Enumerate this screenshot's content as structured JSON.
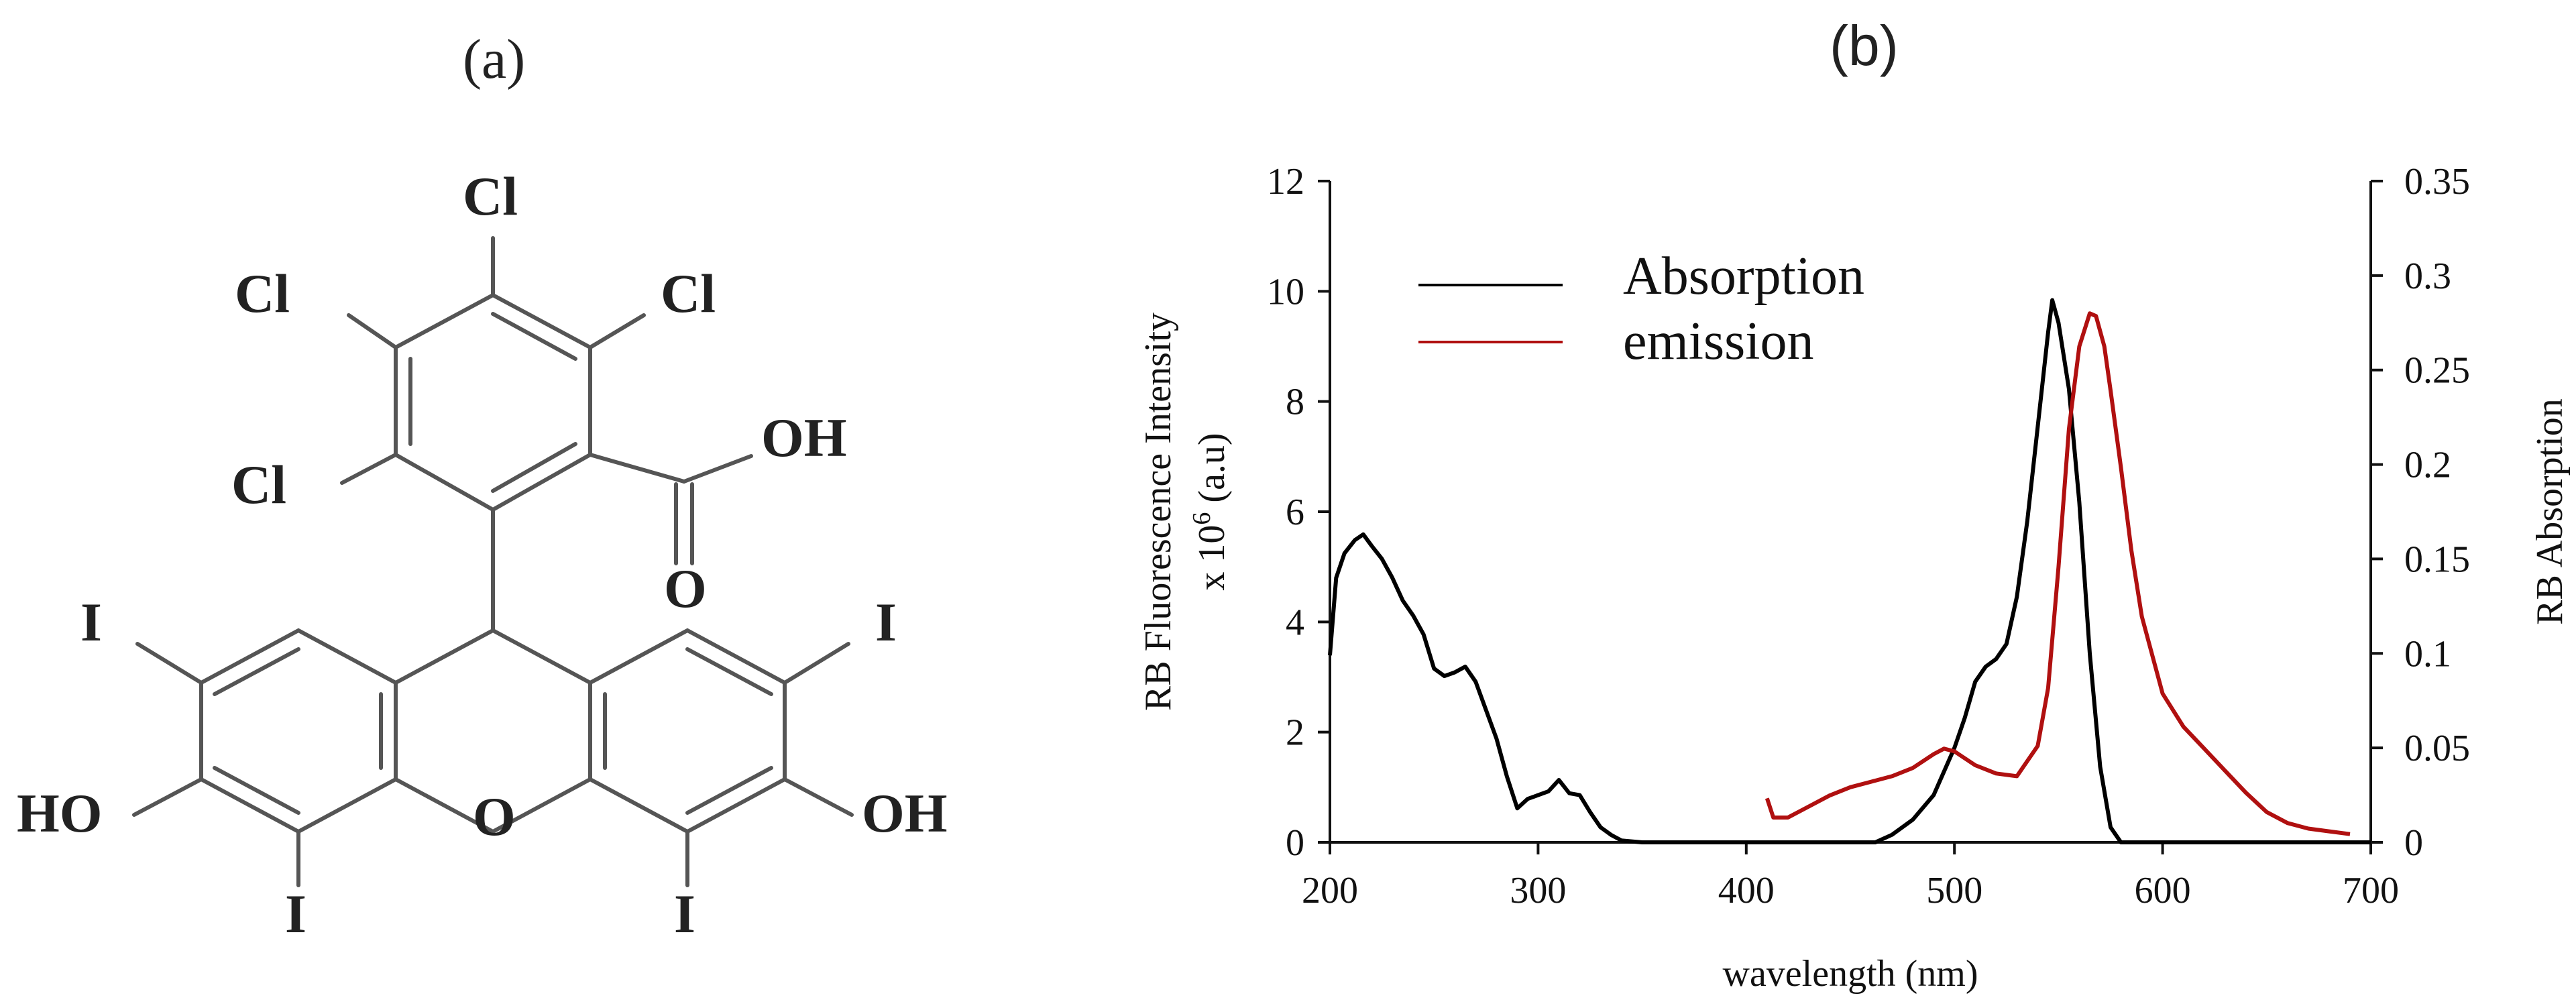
{
  "panels": {
    "a": "(a)",
    "b": "(b)"
  },
  "molecule": {
    "atoms": {
      "cl": "Cl",
      "oh": "OH",
      "ho": "HO",
      "o": "O",
      "i": "I"
    }
  },
  "chart_data": {
    "type": "line",
    "title": "",
    "xlabel": "wavelength (nm)",
    "ylabel_left": "RB Fluorescence Intensity",
    "ylabel_left_unit": "x 10",
    "ylabel_left_exp": "6",
    "ylabel_left_tail": " (a.u)",
    "ylabel_right": "RB Absorption",
    "xlim": [
      200,
      700
    ],
    "ylim_left": [
      0,
      12
    ],
    "ylim_right": [
      0,
      0.35
    ],
    "x_ticks": [
      200,
      300,
      400,
      500,
      600,
      700
    ],
    "y_ticks_left": [
      0,
      2,
      4,
      6,
      8,
      10,
      12
    ],
    "y_ticks_right": [
      "0",
      "0.05",
      "0.1",
      "0.15",
      "0.2",
      "0.25",
      "0.3",
      "0.35"
    ],
    "legend_position": "top-left",
    "series": [
      {
        "name": "Absorption",
        "axis": "right",
        "color": "#000000",
        "x": [
          200,
          203,
          207,
          212,
          216,
          220,
          225,
          230,
          235,
          240,
          245,
          250,
          255,
          260,
          265,
          270,
          275,
          280,
          285,
          290,
          295,
          300,
          305,
          310,
          315,
          320,
          325,
          330,
          335,
          340,
          350,
          400,
          450,
          462,
          470,
          480,
          490,
          500,
          505,
          510,
          515,
          520,
          525,
          530,
          535,
          540,
          545,
          547,
          550,
          555,
          560,
          565,
          570,
          575,
          580,
          600,
          700
        ],
        "y": [
          0.099,
          0.14,
          0.153,
          0.16,
          0.163,
          0.157,
          0.15,
          0.14,
          0.128,
          0.12,
          0.11,
          0.092,
          0.088,
          0.09,
          0.093,
          0.085,
          0.07,
          0.055,
          0.035,
          0.018,
          0.023,
          0.025,
          0.027,
          0.033,
          0.026,
          0.025,
          0.016,
          0.008,
          0.004,
          0.001,
          0,
          0,
          0,
          0,
          0.004,
          0.012,
          0.025,
          0.05,
          0.066,
          0.085,
          0.093,
          0.097,
          0.105,
          0.13,
          0.17,
          0.22,
          0.27,
          0.287,
          0.275,
          0.24,
          0.18,
          0.1,
          0.04,
          0.008,
          0,
          0,
          0
        ]
      },
      {
        "name": "emission",
        "axis": "left",
        "color": "#b01010",
        "x": [
          410,
          413,
          420,
          430,
          440,
          450,
          460,
          470,
          480,
          490,
          495,
          500,
          510,
          520,
          530,
          540,
          545,
          550,
          555,
          560,
          565,
          568,
          572,
          575,
          580,
          585,
          590,
          600,
          610,
          620,
          630,
          640,
          650,
          660,
          670,
          680,
          690
        ],
        "y": [
          0.8,
          0.45,
          0.45,
          0.65,
          0.85,
          1.0,
          1.1,
          1.2,
          1.35,
          1.6,
          1.7,
          1.65,
          1.4,
          1.25,
          1.2,
          1.75,
          2.8,
          5.0,
          7.5,
          9.0,
          9.6,
          9.55,
          9.0,
          8.2,
          6.8,
          5.3,
          4.1,
          2.7,
          2.1,
          1.7,
          1.3,
          0.9,
          0.55,
          0.35,
          0.25,
          0.2,
          0.15
        ]
      }
    ]
  }
}
